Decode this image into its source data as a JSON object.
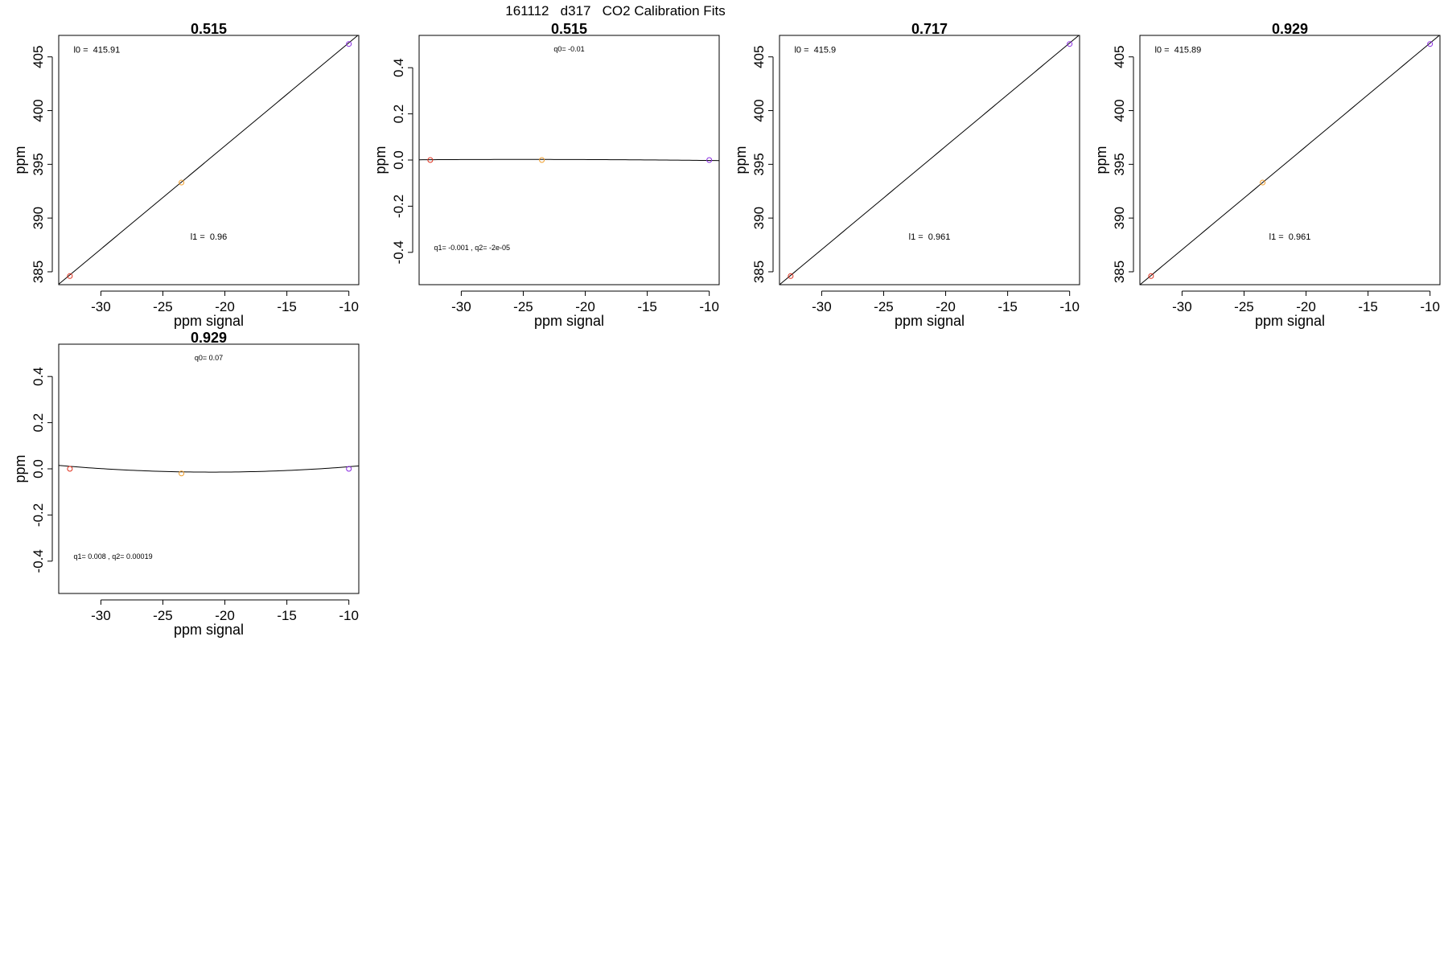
{
  "figure_title": "161112   d317   CO2 Calibration Fits",
  "colors": {
    "point_low": "#e0301e",
    "point_mid": "#f0a030",
    "point_high": "#8a2be2",
    "line": "#000000"
  },
  "chart_data": [
    {
      "type": "scatter",
      "title": "0.515",
      "xlabel": "ppm signal",
      "ylabel": "ppm",
      "xlim": [
        -33.4,
        -9.2
      ],
      "ylim": [
        383.8,
        407.0
      ],
      "xticks": [
        -30,
        -25,
        -20,
        -15,
        -10
      ],
      "yticks": [
        385,
        390,
        395,
        400,
        405
      ],
      "points": [
        {
          "x": -32.5,
          "y": 384.6,
          "color": "#e0301e"
        },
        {
          "x": -23.5,
          "y": 393.3,
          "color": "#f0a030"
        },
        {
          "x": -10.0,
          "y": 406.2,
          "color": "#8a2be2"
        }
      ],
      "fit": {
        "kind": "linear",
        "intercept": 415.91,
        "slope": 0.96
      },
      "annotations": [
        {
          "text": "l0 =  415.91",
          "x": -32.2,
          "y": 405.4,
          "anchor": "start",
          "size": "normal"
        },
        {
          "text": "l1 =  0.96",
          "x": -21.3,
          "y": 388.0,
          "anchor": "middle",
          "size": "normal"
        }
      ]
    },
    {
      "type": "scatter",
      "title": "0.515",
      "xlabel": "ppm signal",
      "ylabel": "ppm",
      "xlim": [
        -33.4,
        -9.2
      ],
      "ylim": [
        -0.54,
        0.54
      ],
      "xticks": [
        -30,
        -25,
        -20,
        -15,
        -10
      ],
      "yticks": [
        -0.4,
        -0.2,
        0.0,
        0.2,
        0.4
      ],
      "ytick_labels": [
        "-0.4",
        "-0.2",
        "0.0",
        "0.2",
        "0.4"
      ],
      "points": [
        {
          "x": -32.5,
          "y": 0.0,
          "color": "#e0301e"
        },
        {
          "x": -23.5,
          "y": 0.0,
          "color": "#f0a030"
        },
        {
          "x": -10.0,
          "y": 0.0,
          "color": "#8a2be2"
        }
      ],
      "fit": {
        "kind": "quadratic",
        "q0": -0.01,
        "q1": -0.001,
        "q2": -2e-05
      },
      "annotations": [
        {
          "text": "q0= -0.01",
          "x": -21.3,
          "y": 0.47,
          "anchor": "middle",
          "size": "small"
        },
        {
          "text": "q1= -0.001 , q2= -2e-05",
          "x": -32.2,
          "y": -0.39,
          "anchor": "start",
          "size": "small"
        }
      ]
    },
    {
      "type": "scatter",
      "title": "0.717",
      "xlabel": "ppm signal",
      "ylabel": "ppm",
      "xlim": [
        -33.4,
        -9.2
      ],
      "ylim": [
        383.8,
        407.0
      ],
      "xticks": [
        -30,
        -25,
        -20,
        -15,
        -10
      ],
      "yticks": [
        385,
        390,
        395,
        400,
        405
      ],
      "points": [
        {
          "x": -32.5,
          "y": 384.6,
          "color": "#e0301e"
        },
        {
          "x": -10.0,
          "y": 406.2,
          "color": "#8a2be2"
        }
      ],
      "fit": {
        "kind": "linear",
        "intercept": 415.9,
        "slope": 0.961
      },
      "annotations": [
        {
          "text": "l0 =  415.9",
          "x": -32.2,
          "y": 405.4,
          "anchor": "start",
          "size": "normal"
        },
        {
          "text": "l1 =  0.961",
          "x": -21.3,
          "y": 388.0,
          "anchor": "middle",
          "size": "normal"
        }
      ]
    },
    {
      "type": "scatter",
      "title": "0.929",
      "xlabel": "ppm signal",
      "ylabel": "ppm",
      "xlim": [
        -33.4,
        -9.2
      ],
      "ylim": [
        383.8,
        407.0
      ],
      "xticks": [
        -30,
        -25,
        -20,
        -15,
        -10
      ],
      "yticks": [
        385,
        390,
        395,
        400,
        405
      ],
      "points": [
        {
          "x": -32.5,
          "y": 384.6,
          "color": "#e0301e"
        },
        {
          "x": -23.5,
          "y": 393.3,
          "color": "#f0a030"
        },
        {
          "x": -10.0,
          "y": 406.2,
          "color": "#8a2be2"
        }
      ],
      "fit": {
        "kind": "linear",
        "intercept": 415.89,
        "slope": 0.961
      },
      "annotations": [
        {
          "text": "l0 =  415.89",
          "x": -32.2,
          "y": 405.4,
          "anchor": "start",
          "size": "normal"
        },
        {
          "text": "l1 =  0.961",
          "x": -21.3,
          "y": 388.0,
          "anchor": "middle",
          "size": "normal"
        }
      ]
    },
    {
      "type": "scatter",
      "title": "0.929",
      "xlabel": "ppm signal",
      "ylabel": "ppm",
      "xlim": [
        -33.4,
        -9.2
      ],
      "ylim": [
        -0.54,
        0.54
      ],
      "xticks": [
        -30,
        -25,
        -20,
        -15,
        -10
      ],
      "yticks": [
        -0.4,
        -0.2,
        0.0,
        0.2,
        0.4
      ],
      "ytick_labels": [
        "-0.4",
        "-0.2",
        "0.0",
        "0.2",
        "0.4"
      ],
      "points": [
        {
          "x": -32.5,
          "y": 0.0,
          "color": "#e0301e"
        },
        {
          "x": -23.5,
          "y": -0.02,
          "color": "#f0a030"
        },
        {
          "x": -10.0,
          "y": 0.0,
          "color": "#8a2be2"
        }
      ],
      "fit": {
        "kind": "quadratic",
        "q0": 0.07,
        "q1": 0.008,
        "q2": 0.00019
      },
      "annotations": [
        {
          "text": "q0= 0.07",
          "x": -21.3,
          "y": 0.47,
          "anchor": "middle",
          "size": "small"
        },
        {
          "text": "q1= 0.008 , q2= 0.00019",
          "x": -32.2,
          "y": -0.39,
          "anchor": "start",
          "size": "small"
        }
      ]
    }
  ]
}
